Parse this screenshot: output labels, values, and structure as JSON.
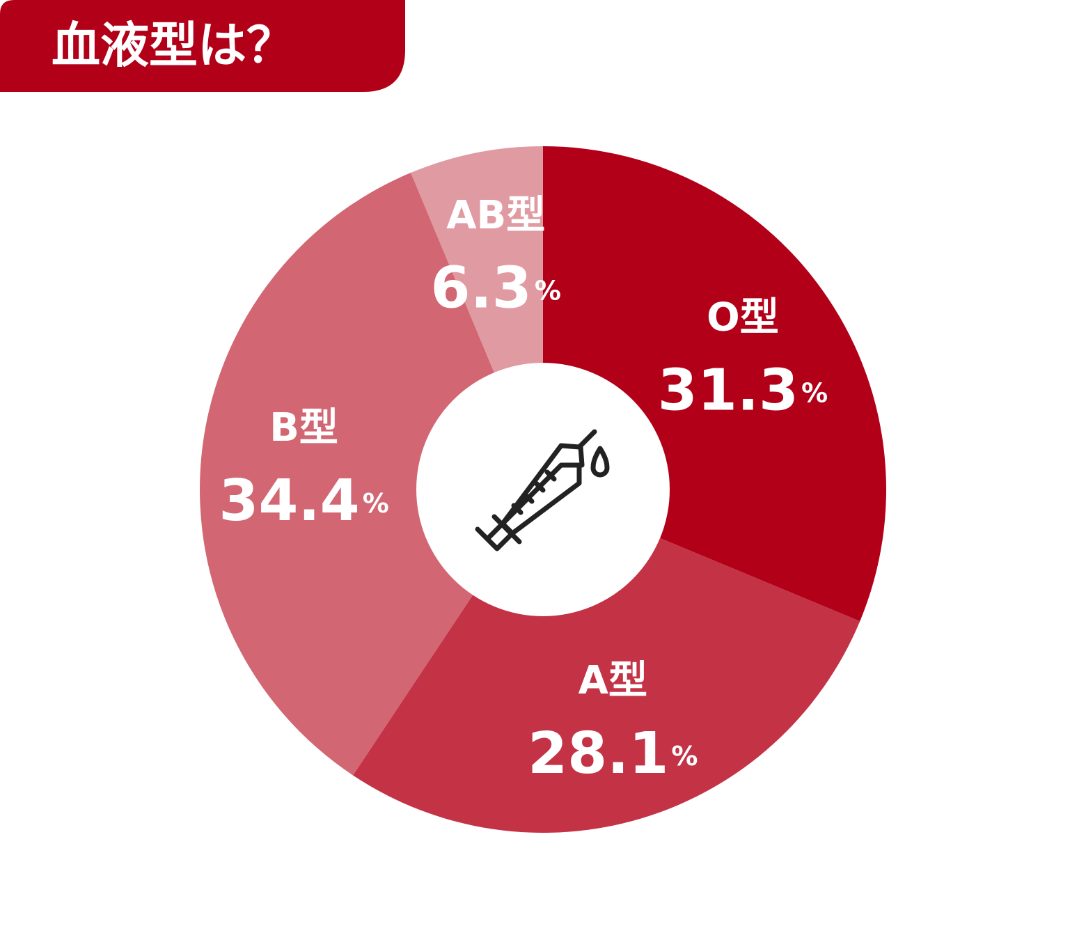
{
  "chart_data": {
    "type": "pie",
    "title": "血液型は？",
    "categories": [
      "O型",
      "A型",
      "B型",
      "AB型"
    ],
    "series": [
      {
        "values": [
          31.3,
          28.1,
          34.4,
          6.3
        ],
        "colors": [
          "#b20019",
          "#c33245",
          "#d26672",
          "#e09ba2"
        ]
      }
    ],
    "unit": "%"
  }
}
